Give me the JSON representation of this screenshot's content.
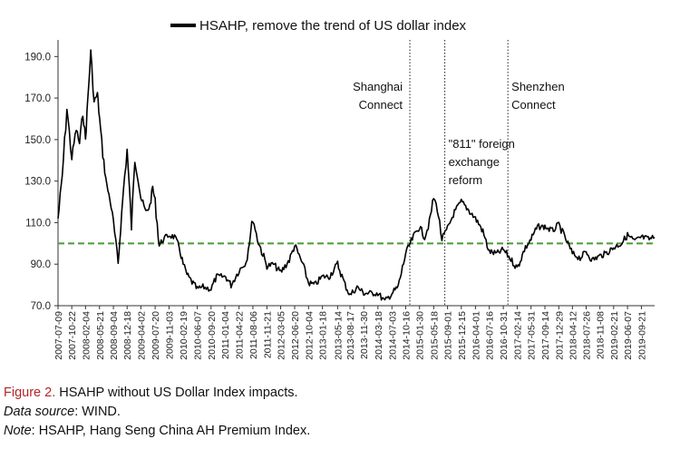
{
  "chart_data": {
    "type": "line",
    "legend_label": "HSAHP, remove the trend of US dollar index",
    "legend_position": "top-center",
    "series": [
      {
        "name": "HSAHP, remove the trend of US dollar index",
        "color": "#000000",
        "points": [
          [
            "2007-07-09",
            112
          ],
          [
            "2007-08-10",
            132
          ],
          [
            "2007-09-15",
            165
          ],
          [
            "2007-10-22",
            141
          ],
          [
            "2007-11-25",
            155
          ],
          [
            "2007-12-20",
            148
          ],
          [
            "2008-01-15",
            163
          ],
          [
            "2008-02-04",
            150
          ],
          [
            "2008-02-20",
            168
          ],
          [
            "2008-03-15",
            192
          ],
          [
            "2008-04-10",
            168
          ],
          [
            "2008-05-05",
            172
          ],
          [
            "2008-05-21",
            160
          ],
          [
            "2008-06-15",
            143
          ],
          [
            "2008-07-15",
            128
          ],
          [
            "2008-08-10",
            121
          ],
          [
            "2008-09-04",
            110
          ],
          [
            "2008-10-10",
            90
          ],
          [
            "2008-10-30",
            108
          ],
          [
            "2008-11-20",
            126
          ],
          [
            "2008-12-18",
            145
          ],
          [
            "2009-01-20",
            108
          ],
          [
            "2009-02-15",
            140
          ],
          [
            "2009-03-10",
            132
          ],
          [
            "2009-04-02",
            122
          ],
          [
            "2009-05-10",
            115
          ],
          [
            "2009-06-10",
            118
          ],
          [
            "2009-07-01",
            127
          ],
          [
            "2009-07-20",
            120
          ],
          [
            "2009-08-20",
            99
          ],
          [
            "2009-09-20",
            102
          ],
          [
            "2009-11-03",
            104
          ],
          [
            "2009-12-15",
            103
          ],
          [
            "2010-01-20",
            98
          ],
          [
            "2010-02-19",
            90
          ],
          [
            "2010-03-20",
            85
          ],
          [
            "2010-04-20",
            82
          ],
          [
            "2010-06-07",
            78
          ],
          [
            "2010-07-20",
            79
          ],
          [
            "2010-09-20",
            78
          ],
          [
            "2010-11-01",
            84
          ],
          [
            "2011-01-10",
            84
          ],
          [
            "2011-02-20",
            80
          ],
          [
            "2011-04-22",
            87
          ],
          [
            "2011-06-15",
            91
          ],
          [
            "2011-08-06",
            112
          ],
          [
            "2011-09-10",
            102
          ],
          [
            "2011-11-21",
            89
          ],
          [
            "2012-01-10",
            90
          ],
          [
            "2012-03-05",
            86
          ],
          [
            "2012-05-10",
            92
          ],
          [
            "2012-06-20",
            99
          ],
          [
            "2012-08-20",
            90
          ],
          [
            "2012-10-04",
            81
          ],
          [
            "2012-11-20",
            80
          ],
          [
            "2013-01-18",
            84
          ],
          [
            "2013-03-10",
            84
          ],
          [
            "2013-05-14",
            90
          ],
          [
            "2013-07-10",
            80
          ],
          [
            "2013-08-17",
            75
          ],
          [
            "2013-10-10",
            79
          ],
          [
            "2013-11-30",
            76
          ],
          [
            "2014-01-15",
            76
          ],
          [
            "2014-03-18",
            76
          ],
          [
            "2014-05-10",
            72
          ],
          [
            "2014-07-03",
            76
          ],
          [
            "2014-08-20",
            79
          ],
          [
            "2014-10-16",
            95
          ],
          [
            "2014-11-20",
            100
          ],
          [
            "2014-12-30",
            105
          ],
          [
            "2015-01-30",
            108
          ],
          [
            "2015-03-10",
            103
          ],
          [
            "2015-04-15",
            110
          ],
          [
            "2015-05-18",
            122
          ],
          [
            "2015-06-15",
            117
          ],
          [
            "2015-07-20",
            102
          ],
          [
            "2015-09-01",
            107
          ],
          [
            "2015-10-15",
            114
          ],
          [
            "2015-12-15",
            120
          ],
          [
            "2016-02-10",
            116
          ],
          [
            "2016-04-01",
            112
          ],
          [
            "2016-05-20",
            107
          ],
          [
            "2016-07-16",
            96
          ],
          [
            "2016-09-10",
            95
          ],
          [
            "2016-10-31",
            97
          ],
          [
            "2016-12-20",
            93
          ],
          [
            "2017-02-14",
            88
          ],
          [
            "2017-04-10",
            97
          ],
          [
            "2017-05-31",
            102
          ],
          [
            "2017-07-20",
            108
          ],
          [
            "2017-09-14",
            108
          ],
          [
            "2017-11-10",
            106
          ],
          [
            "2017-12-29",
            109
          ],
          [
            "2018-02-20",
            102
          ],
          [
            "2018-04-12",
            95
          ],
          [
            "2018-06-10",
            93
          ],
          [
            "2018-07-26",
            96
          ],
          [
            "2018-09-10",
            92
          ],
          [
            "2018-11-08",
            94
          ],
          [
            "2018-12-20",
            95
          ],
          [
            "2019-02-21",
            98
          ],
          [
            "2019-04-20",
            100
          ],
          [
            "2019-06-07",
            104
          ],
          [
            "2019-08-01",
            101
          ],
          [
            "2019-09-21",
            103
          ],
          [
            "2019-11-20",
            102
          ],
          [
            "2019-12-31",
            103
          ]
        ]
      }
    ],
    "reference_line": {
      "y": 100,
      "color": "#4a9a3a",
      "style": "dashed"
    },
    "event_lines": [
      {
        "date": "2014-11-17",
        "label_lines": [
          "Shanghai",
          "Connect"
        ],
        "label_side": "left"
      },
      {
        "date": "2015-08-11",
        "label_lines": [
          "\"811\" foreign",
          "exchange",
          "reform"
        ],
        "label_side": "right"
      },
      {
        "date": "2016-12-05",
        "label_lines": [
          "Shenzhen",
          "Connect"
        ],
        "label_side": "right"
      }
    ],
    "x_start": "2007-07-09",
    "x_end": "2019-12-31",
    "x_tick_labels": [
      "2007-07-09",
      "2007-10-22",
      "2008-02-04",
      "2008-05-21",
      "2008-09-04",
      "2008-12-18",
      "2009-04-02",
      "2009-07-20",
      "2009-11-03",
      "2010-02-19",
      "2010-06-07",
      "2010-09-20",
      "2011-01-04",
      "2011-04-22",
      "2011-08-06",
      "2011-11-21",
      "2012-03-05",
      "2012-06-20",
      "2012-10-04",
      "2013-01-18",
      "2013-05-14",
      "2013-08-17",
      "2013-11-30",
      "2014-03-18",
      "2014-07-03",
      "2014-10-16",
      "2015-01-30",
      "2015-05-18",
      "2015-09-01",
      "2015-12-15",
      "2016-04-01",
      "2016-07-16",
      "2016-10-31",
      "2017-02-14",
      "2017-05-31",
      "2017-09-14",
      "2017-12-29",
      "2018-04-12",
      "2018-07-26",
      "2018-11-08",
      "2019-02-21",
      "2019-06-07",
      "2019-09-21"
    ],
    "y_ticks": [
      "70.0",
      "90.0",
      "110.0",
      "130.0",
      "150.0",
      "170.0",
      "190.0"
    ],
    "ylim": [
      70,
      198
    ],
    "grid": false,
    "xlabel": "",
    "ylabel": ""
  },
  "caption": {
    "figure_label": "Figure 2.",
    "figure_title": " HSAHP without US Dollar Index impacts.",
    "source_label": "Data source",
    "source_text": ": WIND.",
    "note_label": "Note",
    "note_text": ": HSAHP, Hang Seng China AH Premium Index."
  }
}
